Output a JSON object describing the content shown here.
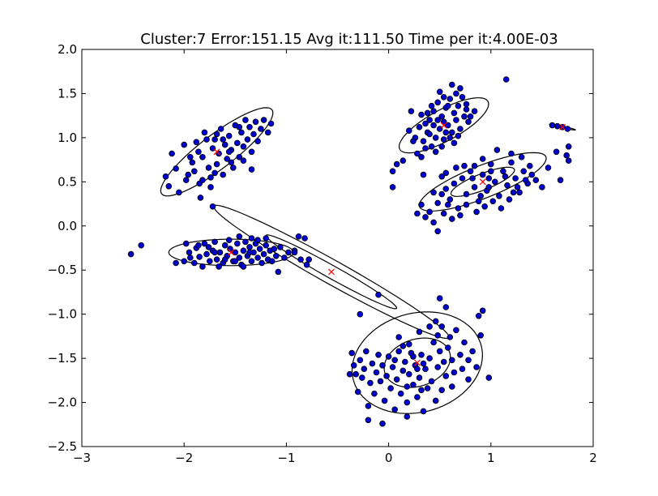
{
  "chart_data": {
    "type": "scatter",
    "title": "Cluster:7 Error:151.15 Avg it:111.50 Time per it:4.00E-03",
    "xlabel": "",
    "ylabel": "",
    "xlim": [
      -3,
      2
    ],
    "ylim": [
      -2.5,
      2.0
    ],
    "xticks": [
      -3,
      -2,
      -1,
      0,
      1,
      2
    ],
    "yticks": [
      -2.5,
      -2.0,
      -1.5,
      -1.0,
      -0.5,
      0.0,
      0.5,
      1.0,
      1.5,
      2.0
    ],
    "xtick_labels": [
      "−3",
      "−2",
      "−1",
      "0",
      "1",
      "2"
    ],
    "ytick_labels": [
      "−2.5",
      "−2.0",
      "−1.5",
      "−1.0",
      "−0.5",
      "0.0",
      "0.5",
      "1.0",
      "1.5",
      "2.0"
    ],
    "grid": false,
    "point_color": "#0000cc",
    "centroid_color": "#ff0000",
    "points": [
      [
        -2.52,
        -0.32
      ],
      [
        -2.42,
        -0.22
      ],
      [
        -2.18,
        0.56
      ],
      [
        -2.12,
        0.82
      ],
      [
        -2.15,
        0.45
      ],
      [
        -2.08,
        0.65
      ],
      [
        -2.05,
        0.38
      ],
      [
        -2.0,
        0.92
      ],
      [
        -1.96,
        0.58
      ],
      [
        -1.92,
        0.72
      ],
      [
        -1.88,
        0.95
      ],
      [
        -1.85,
        0.48
      ],
      [
        -1.82,
        0.78
      ],
      [
        -1.8,
        1.06
      ],
      [
        -1.76,
        0.66
      ],
      [
        -1.74,
        0.55
      ],
      [
        -1.72,
        0.88
      ],
      [
        -1.7,
        0.98
      ],
      [
        -1.68,
        0.7
      ],
      [
        -1.66,
        0.82
      ],
      [
        -1.64,
        1.1
      ],
      [
        -1.62,
        0.58
      ],
      [
        -1.6,
        0.92
      ],
      [
        -1.58,
        0.76
      ],
      [
        -1.56,
        1.02
      ],
      [
        -1.54,
        0.86
      ],
      [
        -1.52,
        0.66
      ],
      [
        -1.5,
        1.14
      ],
      [
        -1.48,
        0.94
      ],
      [
        -1.46,
        0.78
      ],
      [
        -1.44,
        1.06
      ],
      [
        -1.42,
        0.9
      ],
      [
        -1.4,
        1.2
      ],
      [
        -1.38,
        0.98
      ],
      [
        -1.36,
        1.12
      ],
      [
        -1.34,
        0.84
      ],
      [
        -1.32,
        1.04
      ],
      [
        -1.3,
        1.18
      ],
      [
        -1.28,
        0.96
      ],
      [
        -1.25,
        1.1
      ],
      [
        -1.22,
        1.2
      ],
      [
        -1.18,
        1.06
      ],
      [
        -1.15,
        1.16
      ],
      [
        -1.98,
        0.52
      ],
      [
        -1.9,
        0.62
      ],
      [
        -1.78,
        0.98
      ],
      [
        -1.86,
        0.84
      ],
      [
        -1.54,
        0.72
      ],
      [
        -1.46,
        1.12
      ],
      [
        -1.34,
        0.64
      ],
      [
        -1.62,
        0.98
      ],
      [
        -1.7,
        0.6
      ],
      [
        -1.94,
        0.78
      ],
      [
        -1.82,
        0.52
      ],
      [
        -1.74,
        0.44
      ],
      [
        -1.68,
        1.04
      ],
      [
        -1.56,
        0.84
      ],
      [
        -1.84,
        0.32
      ],
      [
        -1.72,
        0.22
      ],
      [
        -1.42,
        0.74
      ],
      [
        -2.0,
        -0.4
      ],
      [
        -1.98,
        -0.2
      ],
      [
        -1.95,
        -0.3
      ],
      [
        -1.9,
        -0.42
      ],
      [
        -1.88,
        -0.25
      ],
      [
        -1.85,
        -0.35
      ],
      [
        -1.82,
        -0.46
      ],
      [
        -1.8,
        -0.2
      ],
      [
        -1.78,
        -0.32
      ],
      [
        -1.75,
        -0.4
      ],
      [
        -1.72,
        -0.28
      ],
      [
        -1.7,
        -0.18
      ],
      [
        -1.68,
        -0.38
      ],
      [
        -1.65,
        -0.3
      ],
      [
        -1.62,
        -0.42
      ],
      [
        -1.6,
        -0.22
      ],
      [
        -1.58,
        -0.34
      ],
      [
        -1.55,
        -0.26
      ],
      [
        -1.52,
        -0.4
      ],
      [
        -1.5,
        -0.3
      ],
      [
        -1.48,
        -0.2
      ],
      [
        -1.46,
        -0.36
      ],
      [
        -1.44,
        -0.44
      ],
      [
        -1.42,
        -0.28
      ],
      [
        -1.4,
        -0.18
      ],
      [
        -1.38,
        -0.34
      ],
      [
        -1.36,
        -0.24
      ],
      [
        -1.34,
        -0.4
      ],
      [
        -1.32,
        -0.3
      ],
      [
        -1.3,
        -0.2
      ],
      [
        -1.28,
        -0.36
      ],
      [
        -1.26,
        -0.26
      ],
      [
        -1.24,
        -0.42
      ],
      [
        -1.22,
        -0.32
      ],
      [
        -1.2,
        -0.22
      ],
      [
        -1.18,
        -0.38
      ],
      [
        -1.16,
        -0.28
      ],
      [
        -1.14,
        -0.4
      ],
      [
        -1.12,
        -0.26
      ],
      [
        -1.1,
        -0.34
      ],
      [
        -1.06,
        -0.24
      ],
      [
        -1.02,
        -0.36
      ],
      [
        -0.98,
        -0.3
      ],
      [
        -1.08,
        -0.52
      ],
      [
        -0.92,
        -0.28
      ],
      [
        -1.86,
        -0.22
      ],
      [
        -1.66,
        -0.46
      ],
      [
        -1.46,
        -0.12
      ],
      [
        -1.56,
        -0.16
      ],
      [
        -1.34,
        -0.14
      ],
      [
        -1.76,
        -0.24
      ],
      [
        -1.94,
        -0.36
      ],
      [
        -1.6,
        -0.38
      ],
      [
        -1.28,
        -0.16
      ],
      [
        -1.42,
        -0.46
      ],
      [
        -1.5,
        -0.4
      ],
      [
        -1.7,
        -0.3
      ],
      [
        -1.36,
        -0.3
      ],
      [
        -1.2,
        -0.14
      ],
      [
        -2.08,
        -0.42
      ],
      [
        -0.88,
        -0.12
      ],
      [
        -0.82,
        -0.14
      ],
      [
        -0.86,
        -0.38
      ],
      [
        -0.8,
        -0.44
      ],
      [
        -0.78,
        -0.38
      ],
      [
        -0.92,
        -0.3
      ],
      [
        -0.28,
        -1.0
      ],
      [
        -0.1,
        -0.78
      ],
      [
        0.22,
        1.3
      ],
      [
        0.26,
        1.0
      ],
      [
        0.28,
        0.82
      ],
      [
        0.3,
        1.12
      ],
      [
        0.32,
        1.26
      ],
      [
        0.34,
        0.96
      ],
      [
        0.36,
        1.16
      ],
      [
        0.38,
        1.06
      ],
      [
        0.4,
        1.2
      ],
      [
        0.42,
        0.9
      ],
      [
        0.44,
        1.3
      ],
      [
        0.46,
        1.0
      ],
      [
        0.48,
        1.4
      ],
      [
        0.5,
        1.1
      ],
      [
        0.52,
        1.24
      ],
      [
        0.54,
        0.98
      ],
      [
        0.56,
        1.34
      ],
      [
        0.58,
        1.14
      ],
      [
        0.6,
        1.44
      ],
      [
        0.62,
        1.06
      ],
      [
        0.64,
        1.28
      ],
      [
        0.66,
        1.2
      ],
      [
        0.68,
        1.36
      ],
      [
        0.7,
        1.1
      ],
      [
        0.72,
        1.46
      ],
      [
        0.74,
        1.24
      ],
      [
        0.76,
        1.32
      ],
      [
        0.78,
        1.18
      ],
      [
        0.8,
        1.24
      ],
      [
        0.84,
        1.3
      ],
      [
        0.5,
        1.52
      ],
      [
        0.54,
        1.46
      ],
      [
        0.58,
        1.36
      ],
      [
        0.62,
        1.6
      ],
      [
        0.66,
        1.5
      ],
      [
        0.7,
        1.56
      ],
      [
        0.48,
        1.2
      ],
      [
        0.44,
        1.14
      ],
      [
        0.4,
        1.04
      ],
      [
        0.36,
        0.88
      ],
      [
        0.32,
        0.78
      ],
      [
        0.46,
        0.84
      ],
      [
        0.52,
        0.9
      ],
      [
        0.56,
        1.06
      ],
      [
        0.6,
        1.0
      ],
      [
        0.64,
        0.94
      ],
      [
        0.38,
        1.28
      ],
      [
        0.42,
        1.36
      ],
      [
        0.54,
        1.18
      ],
      [
        0.68,
        1.02
      ],
      [
        0.04,
        0.44
      ],
      [
        0.04,
        0.62
      ],
      [
        0.14,
        0.74
      ],
      [
        0.2,
        1.08
      ],
      [
        0.34,
        0.58
      ],
      [
        0.08,
        0.7
      ],
      [
        0.24,
        0.96
      ],
      [
        0.76,
        1.38
      ],
      [
        0.32,
        0.24
      ],
      [
        0.4,
        0.16
      ],
      [
        0.44,
        0.38
      ],
      [
        0.48,
        0.26
      ],
      [
        0.52,
        0.56
      ],
      [
        0.56,
        0.42
      ],
      [
        0.6,
        0.3
      ],
      [
        0.64,
        0.48
      ],
      [
        0.68,
        0.2
      ],
      [
        0.72,
        0.54
      ],
      [
        0.76,
        0.36
      ],
      [
        0.8,
        0.62
      ],
      [
        0.84,
        0.44
      ],
      [
        0.88,
        0.28
      ],
      [
        0.92,
        0.58
      ],
      [
        0.96,
        0.4
      ],
      [
        1.0,
        0.7
      ],
      [
        1.04,
        0.5
      ],
      [
        1.08,
        0.34
      ],
      [
        1.12,
        0.62
      ],
      [
        1.16,
        0.46
      ],
      [
        1.2,
        0.72
      ],
      [
        1.24,
        0.54
      ],
      [
        1.28,
        0.38
      ],
      [
        1.32,
        0.62
      ],
      [
        1.36,
        0.48
      ],
      [
        1.4,
        0.58
      ],
      [
        1.44,
        0.52
      ],
      [
        0.36,
        0.1
      ],
      [
        0.44,
        0.04
      ],
      [
        0.54,
        0.14
      ],
      [
        0.62,
        0.08
      ],
      [
        0.7,
        0.12
      ],
      [
        0.76,
        0.24
      ],
      [
        0.86,
        0.16
      ],
      [
        0.94,
        0.22
      ],
      [
        1.02,
        0.28
      ],
      [
        1.1,
        0.2
      ],
      [
        1.18,
        0.3
      ],
      [
        1.26,
        0.44
      ],
      [
        1.5,
        0.44
      ],
      [
        1.56,
        0.66
      ],
      [
        1.64,
        0.84
      ],
      [
        1.68,
        0.52
      ],
      [
        1.74,
        0.8
      ],
      [
        0.84,
        0.68
      ],
      [
        0.92,
        0.76
      ],
      [
        1.06,
        0.86
      ],
      [
        1.2,
        0.82
      ],
      [
        1.3,
        0.78
      ],
      [
        1.38,
        0.68
      ],
      [
        0.56,
        0.6
      ],
      [
        0.66,
        0.66
      ],
      [
        0.74,
        0.68
      ],
      [
        0.82,
        0.54
      ],
      [
        0.98,
        0.54
      ],
      [
        1.14,
        0.56
      ],
      [
        0.58,
        0.24
      ],
      [
        0.48,
        -0.06
      ],
      [
        0.28,
        0.14
      ],
      [
        1.76,
        0.9
      ],
      [
        1.76,
        0.74
      ],
      [
        0.98,
        0.44
      ],
      [
        1.22,
        0.38
      ],
      [
        1.34,
        0.52
      ],
      [
        0.9,
        0.34
      ],
      [
        0.52,
        0.36
      ],
      [
        1.0,
        0.62
      ],
      [
        1.15,
        1.66
      ],
      [
        1.6,
        1.14
      ],
      [
        1.65,
        1.13
      ],
      [
        1.7,
        1.12
      ],
      [
        1.75,
        1.1
      ],
      [
        -0.38,
        -1.68
      ],
      [
        -0.36,
        -1.44
      ],
      [
        -0.34,
        -1.58
      ],
      [
        -0.3,
        -1.88
      ],
      [
        -0.28,
        -1.52
      ],
      [
        -0.26,
        -1.72
      ],
      [
        -0.24,
        -1.62
      ],
      [
        -0.22,
        -1.42
      ],
      [
        -0.2,
        -2.04
      ],
      [
        -0.18,
        -1.78
      ],
      [
        -0.16,
        -1.56
      ],
      [
        -0.14,
        -1.9
      ],
      [
        -0.12,
        -1.66
      ],
      [
        -0.1,
        -1.46
      ],
      [
        -0.08,
        -1.76
      ],
      [
        -0.06,
        -1.58
      ],
      [
        -0.04,
        -1.98
      ],
      [
        -0.02,
        -1.7
      ],
      [
        0.0,
        -1.48
      ],
      [
        0.02,
        -1.84
      ],
      [
        0.04,
        -1.6
      ],
      [
        0.06,
        -2.08
      ],
      [
        0.08,
        -1.74
      ],
      [
        0.1,
        -1.42
      ],
      [
        0.12,
        -1.9
      ],
      [
        0.14,
        -1.64
      ],
      [
        0.16,
        -1.54
      ],
      [
        0.18,
        -2.0
      ],
      [
        0.2,
        -1.68
      ],
      [
        0.22,
        -1.44
      ],
      [
        0.24,
        -1.8
      ],
      [
        0.26,
        -1.58
      ],
      [
        0.28,
        -1.94
      ],
      [
        0.3,
        -1.72
      ],
      [
        0.32,
        -1.46
      ],
      [
        0.34,
        -2.1
      ],
      [
        0.36,
        -1.62
      ],
      [
        0.38,
        -1.84
      ],
      [
        0.4,
        -1.5
      ],
      [
        0.42,
        -1.76
      ],
      [
        0.44,
        -1.32
      ],
      [
        0.46,
        -1.98
      ],
      [
        0.48,
        -1.6
      ],
      [
        0.5,
        -1.42
      ],
      [
        0.52,
        -1.86
      ],
      [
        0.54,
        -1.54
      ],
      [
        0.56,
        -1.7
      ],
      [
        0.58,
        -1.38
      ],
      [
        0.6,
        -1.26
      ],
      [
        0.62,
        -1.82
      ],
      [
        0.66,
        -1.18
      ],
      [
        0.7,
        -1.46
      ],
      [
        0.74,
        -1.32
      ],
      [
        0.78,
        -1.74
      ],
      [
        0.82,
        -1.42
      ],
      [
        0.86,
        -1.6
      ],
      [
        0.9,
        -1.24
      ],
      [
        0.88,
        -1.02
      ],
      [
        0.92,
        -0.96
      ],
      [
        0.98,
        -1.72
      ],
      [
        0.5,
        -0.82
      ],
      [
        0.56,
        -0.92
      ],
      [
        -0.2,
        -2.2
      ],
      [
        -0.06,
        -2.24
      ],
      [
        0.18,
        -2.16
      ],
      [
        0.1,
        -1.26
      ],
      [
        0.2,
        -1.34
      ],
      [
        0.3,
        -1.2
      ],
      [
        0.4,
        -1.14
      ],
      [
        0.46,
        -1.08
      ],
      [
        0.34,
        -1.56
      ],
      [
        0.24,
        -1.48
      ],
      [
        0.14,
        -1.36
      ],
      [
        0.62,
        -1.52
      ],
      [
        0.72,
        -1.62
      ],
      [
        0.78,
        -1.52
      ],
      [
        0.64,
        -1.66
      ],
      [
        0.48,
        -1.24
      ],
      [
        0.52,
        -1.14
      ],
      [
        0.28,
        -1.62
      ],
      [
        0.18,
        -1.82
      ],
      [
        -0.32,
        -1.68
      ],
      [
        0.32,
        -1.86
      ],
      [
        0.06,
        -1.52
      ]
    ],
    "centroids": [
      [
        -1.68,
        0.84
      ],
      [
        -1.54,
        -0.3
      ],
      [
        -0.56,
        -0.52
      ],
      [
        0.54,
        1.14
      ],
      [
        0.92,
        0.5
      ],
      [
        1.7,
        1.12
      ],
      [
        0.28,
        -1.55
      ]
    ],
    "ellipses": [
      {
        "cx": -1.68,
        "cy": 0.84,
        "a": 0.72,
        "b": 0.18,
        "angle": 42
      },
      {
        "cx": -1.54,
        "cy": -0.3,
        "a": 0.61,
        "b": 0.15,
        "angle": 0
      },
      {
        "cx": -0.56,
        "cy": -0.52,
        "a": 0.76,
        "b": 0.07,
        "angle": -33
      },
      {
        "cx": -0.56,
        "cy": -0.52,
        "a": 1.37,
        "b": 0.13,
        "angle": -33
      },
      {
        "cx": 0.54,
        "cy": 1.14,
        "a": 0.51,
        "b": 0.17,
        "angle": 33
      },
      {
        "cx": 0.92,
        "cy": 0.5,
        "a": 0.68,
        "b": 0.18,
        "angle": 25
      },
      {
        "cx": 0.92,
        "cy": 0.5,
        "a": 0.34,
        "b": 0.09,
        "angle": 25
      },
      {
        "cx": 1.7,
        "cy": 1.12,
        "a": 0.13,
        "b": 0.01,
        "angle": -14
      },
      {
        "cx": 0.28,
        "cy": -1.55,
        "a": 0.66,
        "b": 0.55,
        "angle": 28
      },
      {
        "cx": 0.28,
        "cy": -1.55,
        "a": 0.34,
        "b": 0.26,
        "angle": 28
      }
    ]
  }
}
